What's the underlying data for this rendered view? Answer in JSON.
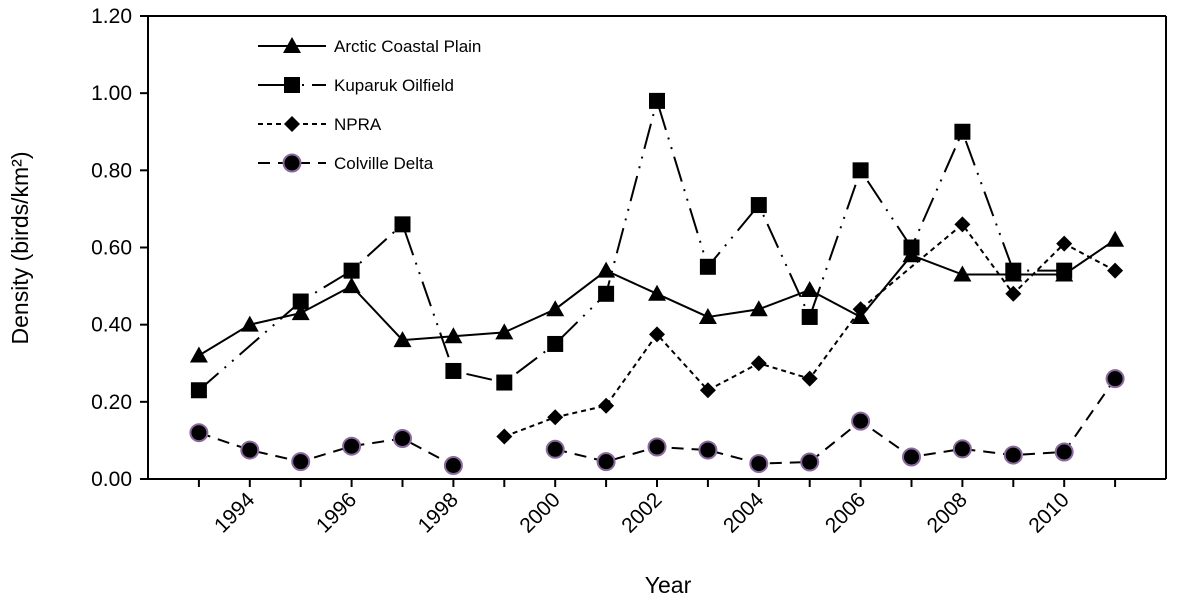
{
  "chart_data": {
    "type": "line",
    "title": "",
    "xlabel": "Year",
    "ylabel": "Density (birds/km²)",
    "xlim": [
      1992,
      2012
    ],
    "ylim": [
      0,
      1.2
    ],
    "x_ticks": [
      "1994",
      "1996",
      "1998",
      "2000",
      "2002",
      "2004",
      "2006",
      "2008",
      "2010"
    ],
    "y_ticks": [
      "0.00",
      "0.20",
      "0.40",
      "0.60",
      "0.80",
      "1.00",
      "1.20"
    ],
    "legend_position": "top-left",
    "grid": false,
    "series": [
      {
        "name": "Arctic Coastal Plain",
        "marker": "triangle",
        "dash": "solid",
        "color": "#000000",
        "x": [
          1993,
          1994,
          1995,
          1996,
          1997,
          1998,
          1999,
          2000,
          2001,
          2002,
          2003,
          2004,
          2005,
          2006,
          2007,
          2008,
          2009,
          2010,
          2011
        ],
        "y": [
          0.32,
          0.4,
          0.43,
          0.5,
          0.36,
          0.37,
          0.38,
          0.44,
          0.54,
          0.48,
          0.42,
          0.44,
          0.49,
          0.42,
          0.58,
          0.53,
          0.53,
          0.53,
          0.62
        ]
      },
      {
        "name": "Kuparuk Oilfield",
        "marker": "square",
        "dash": "long-dash",
        "color": "#000000",
        "x": [
          1993,
          1995,
          1996,
          1997,
          1998,
          1999,
          2000,
          2001,
          2002,
          2003,
          2004,
          2005,
          2006,
          2007,
          2008,
          2009,
          2010
        ],
        "y": [
          0.23,
          0.46,
          0.54,
          0.66,
          0.28,
          0.25,
          0.35,
          0.48,
          0.98,
          0.55,
          0.71,
          0.42,
          0.8,
          0.6,
          0.9,
          0.54,
          0.54
        ]
      },
      {
        "name": "NPRA",
        "marker": "diamond",
        "dash": "dotted",
        "color": "#000000",
        "x": [
          1999,
          2000,
          2001,
          2002,
          2003,
          2004,
          2005,
          2006,
          2008,
          2009,
          2010,
          2011
        ],
        "y": [
          0.11,
          0.16,
          0.19,
          0.375,
          0.23,
          0.3,
          0.26,
          0.44,
          0.66,
          0.48,
          0.61,
          0.54
        ]
      },
      {
        "name": "Colville Delta",
        "marker": "circle",
        "dash": "dashed",
        "color": "#000000",
        "marker_fill": "#8a6a9e",
        "x": [
          1993,
          1994,
          1995,
          1996,
          1997,
          1998,
          2000,
          2001,
          2002,
          2003,
          2004,
          2005,
          2006,
          2007,
          2008,
          2009,
          2010,
          2011
        ],
        "y": [
          0.12,
          0.075,
          0.045,
          0.085,
          0.105,
          0.035,
          0.077,
          0.045,
          0.083,
          0.075,
          0.04,
          0.044,
          0.15,
          0.057,
          0.078,
          0.062,
          0.07,
          0.26
        ]
      }
    ]
  }
}
